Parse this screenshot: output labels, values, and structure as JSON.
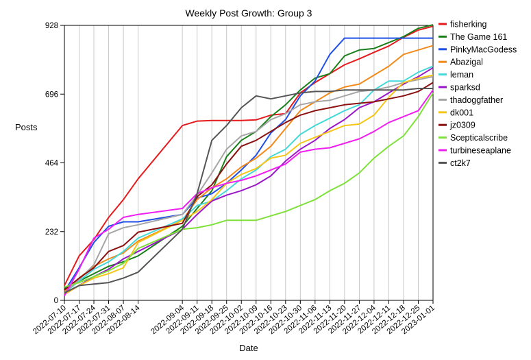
{
  "chart_data": {
    "type": "line",
    "title": "Weekly Post Growth: Group 3",
    "xlabel": "Date",
    "ylabel": "Posts",
    "ylim": [
      0,
      928
    ],
    "yticks": [
      0,
      232,
      464,
      696,
      928
    ],
    "grid": "vertical lines at each date",
    "legend_position": "right",
    "x": [
      "2022-07-10",
      "2022-07-17",
      "2022-07-24",
      "2022-07-31",
      "2022-08-07",
      "2022-08-14",
      "2022-09-04",
      "2022-09-11",
      "2022-09-18",
      "2022-09-25",
      "2022-10-02",
      "2022-10-09",
      "2022-10-16",
      "2022-10-23",
      "2022-10-30",
      "2022-11-06",
      "2022-11-13",
      "2022-11-20",
      "2022-11-27",
      "2022-12-04",
      "2022-12-11",
      "2022-12-18",
      "2022-12-25",
      "2023-01-01"
    ],
    "series": [
      {
        "name": "fisherking",
        "color": "#e41a1c",
        "values": [
          50,
          150,
          205,
          280,
          340,
          410,
          590,
          605,
          607,
          607,
          607,
          609,
          625,
          630,
          700,
          735,
          765,
          795,
          815,
          837,
          858,
          888,
          912,
          925
        ]
      },
      {
        "name": "The Game 161",
        "color": "#1a7f1a",
        "values": [
          40,
          65,
          90,
          115,
          130,
          150,
          250,
          310,
          370,
          485,
          540,
          570,
          620,
          660,
          710,
          750,
          765,
          825,
          845,
          850,
          870,
          890,
          918,
          930
        ]
      },
      {
        "name": "PinkyMacGodess",
        "color": "#1f4fe6",
        "values": [
          30,
          110,
          195,
          250,
          265,
          265,
          290,
          345,
          360,
          395,
          440,
          490,
          565,
          610,
          690,
          740,
          830,
          885,
          885,
          885,
          885,
          885,
          885,
          885
        ]
      },
      {
        "name": "Abazigal",
        "color": "#f08a1a",
        "values": [
          30,
          75,
          115,
          140,
          160,
          200,
          270,
          340,
          380,
          410,
          450,
          480,
          520,
          580,
          640,
          670,
          700,
          720,
          730,
          760,
          790,
          830,
          845,
          860
        ]
      },
      {
        "name": "leman",
        "color": "#44d8d8",
        "values": [
          25,
          65,
          105,
          130,
          165,
          210,
          275,
          320,
          335,
          370,
          410,
          440,
          485,
          510,
          560,
          590,
          615,
          640,
          660,
          710,
          740,
          740,
          770,
          790
        ]
      },
      {
        "name": "sparksd",
        "color": "#9a17c9",
        "values": [
          20,
          50,
          80,
          105,
          140,
          165,
          240,
          290,
          335,
          355,
          370,
          390,
          420,
          470,
          510,
          540,
          580,
          610,
          650,
          670,
          700,
          730,
          755,
          785
        ]
      },
      {
        "name": "thadoggfather",
        "color": "#a5a5a5",
        "values": [
          25,
          70,
          120,
          225,
          245,
          255,
          290,
          355,
          430,
          510,
          555,
          570,
          610,
          630,
          660,
          670,
          675,
          690,
          705,
          710,
          720,
          735,
          745,
          755
        ]
      },
      {
        "name": "dk001",
        "color": "#f5c518",
        "values": [
          20,
          50,
          75,
          90,
          110,
          195,
          270,
          300,
          340,
          395,
          425,
          445,
          480,
          490,
          530,
          550,
          570,
          590,
          595,
          625,
          685,
          735,
          750,
          760
        ]
      },
      {
        "name": "jz0309",
        "color": "#8b1010",
        "values": [
          35,
          75,
          110,
          165,
          185,
          230,
          260,
          350,
          390,
          460,
          520,
          540,
          570,
          600,
          625,
          640,
          650,
          660,
          665,
          670,
          680,
          690,
          705,
          735
        ]
      },
      {
        "name": "Scepticalscribe",
        "color": "#7fe03a",
        "values": [
          45,
          60,
          80,
          100,
          125,
          175,
          240,
          245,
          255,
          270,
          270,
          270,
          285,
          300,
          320,
          340,
          370,
          395,
          430,
          480,
          520,
          555,
          620,
          700
        ]
      },
      {
        "name": "turbineseaplane",
        "color": "#f01ef0",
        "values": [
          15,
          105,
          210,
          240,
          280,
          290,
          310,
          360,
          380,
          395,
          405,
          420,
          440,
          460,
          500,
          510,
          515,
          530,
          545,
          570,
          600,
          620,
          640,
          710
        ]
      },
      {
        "name": "ct2k7",
        "color": "#555555",
        "values": [
          25,
          50,
          55,
          60,
          75,
          95,
          240,
          360,
          540,
          590,
          650,
          690,
          680,
          690,
          700,
          705,
          705,
          710,
          710,
          710,
          710,
          710,
          715,
          715
        ]
      }
    ]
  }
}
